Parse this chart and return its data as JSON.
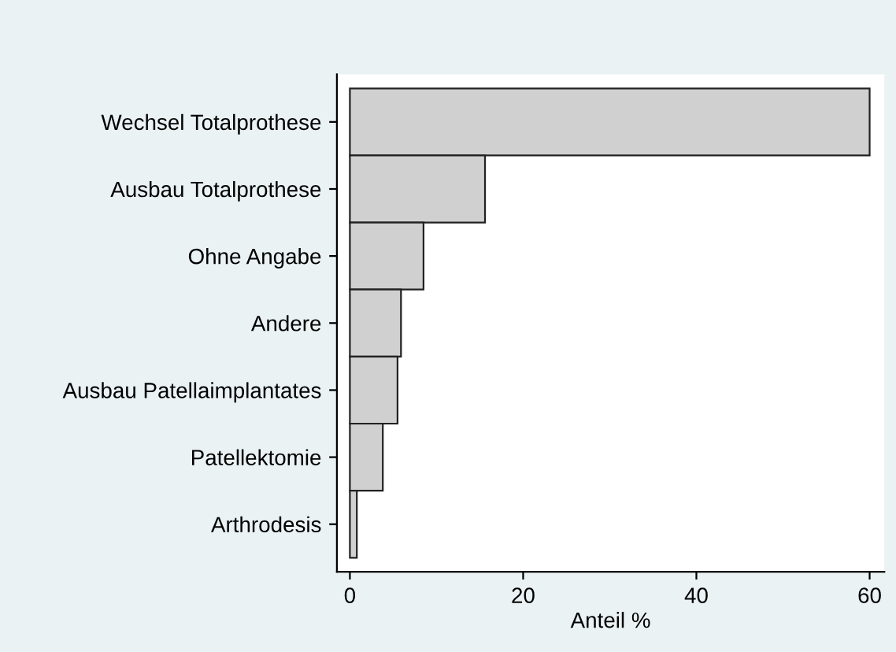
{
  "chart_data": {
    "type": "bar",
    "orientation": "horizontal",
    "xlabel": "Anteil %",
    "categories": [
      "Wechsel Totalprothese",
      "Ausbau Totalprothese",
      "Ohne Angabe",
      "Andere",
      "Ausbau Patellaimplantates",
      "Patellektomie",
      "Arthrodesis"
    ],
    "values": [
      60,
      15.6,
      8.5,
      5.9,
      5.5,
      3.8,
      0.8
    ],
    "color": "#d0d0d0",
    "xlim": [
      -1.5,
      61.7
    ],
    "xticks": [
      0,
      20,
      40,
      60
    ],
    "grid": false,
    "legend": false
  }
}
